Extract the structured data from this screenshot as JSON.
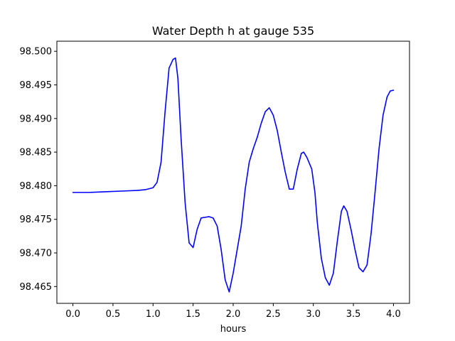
{
  "chart_data": {
    "type": "line",
    "title": "Water Depth h at gauge 535",
    "xlabel": "hours",
    "ylabel": "",
    "xlim": [
      -0.2,
      4.2
    ],
    "ylim": [
      98.4625,
      98.5015
    ],
    "xticks": [
      {
        "value": 0.0,
        "label": "0.0"
      },
      {
        "value": 0.5,
        "label": "0.5"
      },
      {
        "value": 1.0,
        "label": "1.0"
      },
      {
        "value": 1.5,
        "label": "1.5"
      },
      {
        "value": 2.0,
        "label": "2.0"
      },
      {
        "value": 2.5,
        "label": "2.5"
      },
      {
        "value": 3.0,
        "label": "3.0"
      },
      {
        "value": 3.5,
        "label": "3.5"
      },
      {
        "value": 4.0,
        "label": "4.0"
      }
    ],
    "yticks": [
      {
        "value": 98.465,
        "label": "98.465"
      },
      {
        "value": 98.47,
        "label": "98.470"
      },
      {
        "value": 98.475,
        "label": "98.475"
      },
      {
        "value": 98.48,
        "label": "98.480"
      },
      {
        "value": 98.485,
        "label": "98.485"
      },
      {
        "value": 98.49,
        "label": "98.490"
      },
      {
        "value": 98.495,
        "label": "98.495"
      },
      {
        "value": 98.5,
        "label": "98.500"
      }
    ],
    "grid": false,
    "series": [
      {
        "color": "#0000ff",
        "x": [
          0.0,
          0.2,
          0.4,
          0.6,
          0.8,
          0.9,
          1.0,
          1.05,
          1.1,
          1.15,
          1.2,
          1.25,
          1.28,
          1.31,
          1.35,
          1.4,
          1.45,
          1.5,
          1.55,
          1.6,
          1.65,
          1.7,
          1.75,
          1.8,
          1.85,
          1.9,
          1.95,
          2.0,
          2.05,
          2.1,
          2.15,
          2.2,
          2.25,
          2.3,
          2.35,
          2.4,
          2.45,
          2.5,
          2.55,
          2.6,
          2.65,
          2.7,
          2.75,
          2.8,
          2.85,
          2.88,
          2.92,
          2.98,
          3.02,
          3.05,
          3.1,
          3.15,
          3.2,
          3.25,
          3.3,
          3.35,
          3.38,
          3.42,
          3.47,
          3.52,
          3.57,
          3.62,
          3.67,
          3.72,
          3.77,
          3.82,
          3.87,
          3.92,
          3.96,
          4.0
        ],
        "y": [
          98.479,
          98.479,
          98.4791,
          98.4792,
          98.4793,
          98.4794,
          98.4797,
          98.4805,
          98.4835,
          98.491,
          98.4975,
          98.4988,
          98.499,
          98.496,
          98.487,
          98.4775,
          98.4715,
          98.4708,
          98.4735,
          98.4752,
          98.4753,
          98.4754,
          98.4752,
          98.474,
          98.4705,
          98.466,
          98.4642,
          98.467,
          98.4705,
          98.474,
          98.4795,
          98.4835,
          98.4855,
          98.4872,
          98.4893,
          98.491,
          98.4916,
          98.4905,
          98.4882,
          98.485,
          98.482,
          98.4795,
          98.4795,
          98.4825,
          98.4848,
          98.485,
          98.4842,
          98.4825,
          98.479,
          98.4745,
          98.4692,
          98.4663,
          98.4652,
          98.467,
          98.4718,
          98.4762,
          98.477,
          98.4762,
          98.4735,
          98.4705,
          98.4678,
          98.4672,
          98.4682,
          98.4728,
          98.479,
          98.4855,
          98.4905,
          98.4932,
          98.4941,
          98.4942
        ]
      }
    ]
  }
}
